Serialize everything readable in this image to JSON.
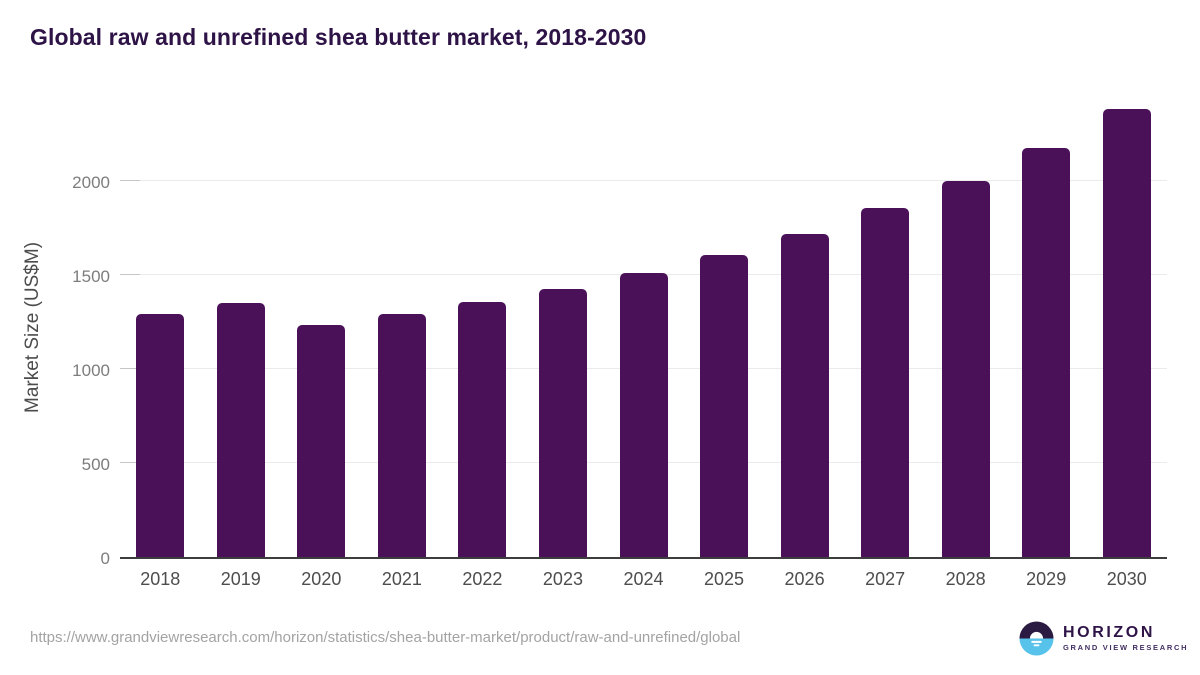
{
  "title": "Global raw and unrefined shea butter market, 2018-2030",
  "chart_data": {
    "type": "bar",
    "title": "Global raw and unrefined shea butter market, 2018-2030",
    "categories": [
      "2018",
      "2019",
      "2020",
      "2021",
      "2022",
      "2023",
      "2024",
      "2025",
      "2026",
      "2027",
      "2028",
      "2029",
      "2030"
    ],
    "values": [
      1295,
      1350,
      1235,
      1290,
      1355,
      1425,
      1510,
      1605,
      1720,
      1855,
      2000,
      2175,
      2385
    ],
    "xlabel": "",
    "ylabel": "Market Size (US$M)",
    "ylim": [
      0,
      2468
    ],
    "yticks": [
      0,
      500,
      1000,
      1500,
      2000
    ],
    "grid": true,
    "legend": "none",
    "bar_color": "#4a1159"
  },
  "colors": {
    "title_text": "#2e1347",
    "bar": "#4a1159",
    "gridline": "#ebebeb",
    "axis_line": "#3d3d3d",
    "y_tick_text": "#7d7d7d",
    "x_tick_text": "#4d4d4d",
    "url_text": "#a3a3a3",
    "logo_dark": "#2b1b42",
    "logo_blue": "#58c3ea"
  },
  "footer": {
    "source_url": "https://www.grandviewresearch.com/horizon/statistics/shea-butter-market/product/raw-and-unrefined/global",
    "logo": {
      "name": "HORIZON",
      "subtitle": "GRAND VIEW RESEARCH",
      "icon": "horizon-sun-circle-icon"
    }
  }
}
